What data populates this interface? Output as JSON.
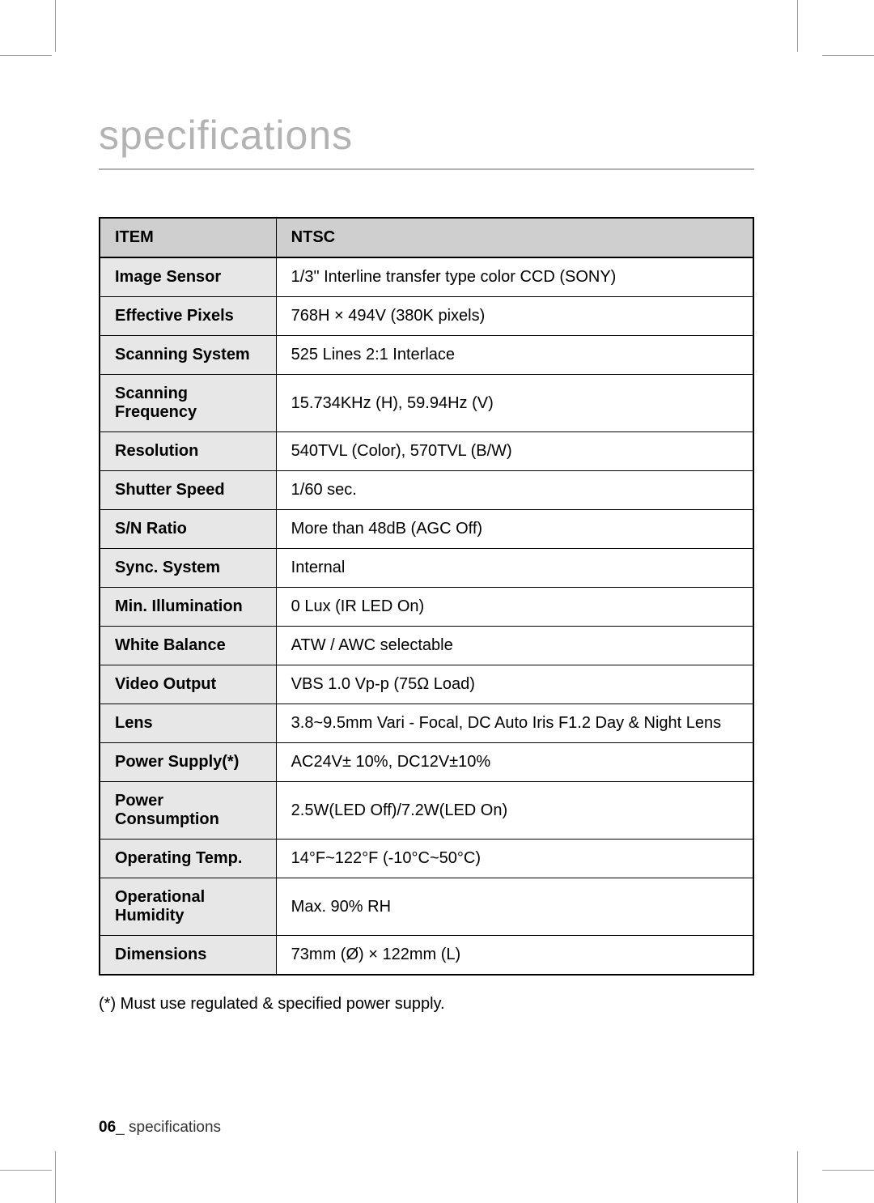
{
  "heading": "specifications",
  "table": {
    "header": {
      "item": "ITEM",
      "ntsc": "NTSC"
    },
    "rows": [
      {
        "label": "Image Sensor",
        "value": "1/3\" Interline transfer type color CCD (SONY)"
      },
      {
        "label": "Effective Pixels",
        "value": "768H × 494V (380K pixels)"
      },
      {
        "label": "Scanning System",
        "value": "525 Lines 2:1 Interlace"
      },
      {
        "label": "Scanning Frequency",
        "value": "15.734KHz (H), 59.94Hz (V)"
      },
      {
        "label": "Resolution",
        "value": "540TVL (Color), 570TVL (B/W)"
      },
      {
        "label": "Shutter Speed",
        "value": "1/60 sec."
      },
      {
        "label": "S/N Ratio",
        "value": "More than 48dB (AGC Off)"
      },
      {
        "label": "Sync. System",
        "value": "Internal"
      },
      {
        "label": "Min. Illumination",
        "value": "0 Lux (IR LED On)"
      },
      {
        "label": "White Balance",
        "value": "ATW / AWC selectable"
      },
      {
        "label": "Video Output",
        "value": "VBS 1.0 Vp-p (75Ω Load)"
      },
      {
        "label": "Lens",
        "value": "3.8~9.5mm Vari - Focal, DC Auto Iris F1.2 Day & Night Lens"
      },
      {
        "label": "Power Supply(*)",
        "value": "AC24V± 10%, DC12V±10%"
      },
      {
        "label": "Power Consumption",
        "value": "2.5W(LED Off)/7.2W(LED On)"
      },
      {
        "label": "Operating Temp.",
        "value": "14°F~122°F (-10°C~50°C)"
      },
      {
        "label": "Operational Humidity",
        "value": "Max. 90% RH"
      },
      {
        "label": "Dimensions",
        "value": "73mm (Ø) × 122mm (L)"
      }
    ]
  },
  "footnote": "(*) Must use regulated & specified power supply.",
  "footer": {
    "page": "06",
    "sep": "_",
    "label": " specifications"
  },
  "style": {
    "colors": {
      "heading": "#b3b3b3",
      "header_bg": "#cfcfcf",
      "label_bg": "#e7e7e7",
      "border": "#000000",
      "background": "#ffffff",
      "cropmark": "#9d9d9d"
    },
    "fontsize": {
      "heading": 50,
      "cell": 20,
      "footnote": 20,
      "footer": 19
    },
    "col_label_width_pct": 27,
    "col_value_width_pct": 73
  }
}
